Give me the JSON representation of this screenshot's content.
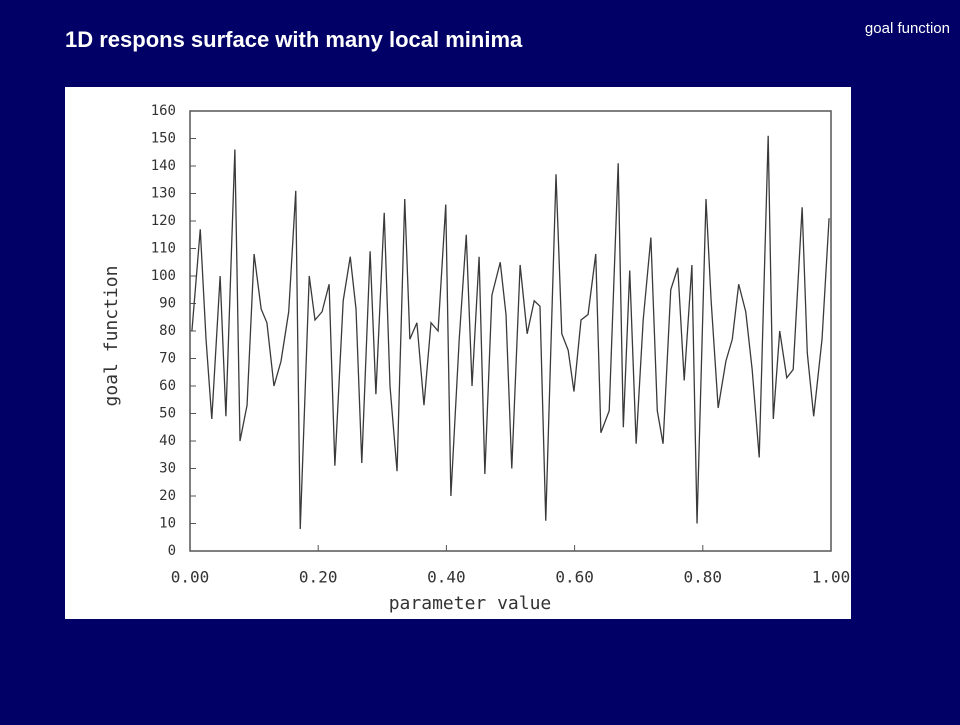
{
  "header_label": "goal function",
  "chart_data": {
    "type": "line",
    "title": "1D respons surface with many local minima",
    "x_label": "parameter value",
    "y_label": "goal function",
    "xlim": [
      0,
      1
    ],
    "ylim": [
      0,
      160
    ],
    "xticks": [
      {
        "value": 0,
        "label": "0.00"
      },
      {
        "value": 0.2,
        "label": "0.20"
      },
      {
        "value": 0.4,
        "label": "0.40"
      },
      {
        "value": 0.6,
        "label": "0.60"
      },
      {
        "value": 0.8,
        "label": "0.80"
      },
      {
        "value": 1,
        "label": "1.00"
      }
    ],
    "yticks": [
      0,
      10,
      20,
      30,
      40,
      50,
      60,
      70,
      80,
      90,
      100,
      110,
      120,
      130,
      140,
      150,
      160
    ],
    "color": "#3a3a3a",
    "x": [
      0.003,
      0.016,
      0.025,
      0.034,
      0.047,
      0.056,
      0.07,
      0.078,
      0.089,
      0.1,
      0.111,
      0.12,
      0.131,
      0.142,
      0.154,
      0.165,
      0.172,
      0.186,
      0.195,
      0.206,
      0.217,
      0.226,
      0.239,
      0.25,
      0.259,
      0.268,
      0.281,
      0.29,
      0.303,
      0.312,
      0.323,
      0.335,
      0.343,
      0.354,
      0.365,
      0.376,
      0.387,
      0.399,
      0.407,
      0.42,
      0.431,
      0.44,
      0.451,
      0.46,
      0.471,
      0.484,
      0.493,
      0.502,
      0.515,
      0.526,
      0.537,
      0.546,
      0.555,
      0.571,
      0.58,
      0.59,
      0.599,
      0.61,
      0.621,
      0.633,
      0.641,
      0.654,
      0.668,
      0.676,
      0.686,
      0.696,
      0.707,
      0.719,
      0.729,
      0.738,
      0.75,
      0.761,
      0.771,
      0.783,
      0.791,
      0.805,
      0.813,
      0.824,
      0.836,
      0.846,
      0.856,
      0.867,
      0.877,
      0.888,
      0.902,
      0.91,
      0.92,
      0.931,
      0.941,
      0.955,
      0.963,
      0.973,
      0.986,
      0.997
    ],
    "values": [
      80,
      117,
      77,
      48,
      100,
      49,
      146,
      40,
      53,
      108,
      88,
      83,
      60,
      69,
      87,
      131,
      8,
      100,
      84,
      87,
      97,
      31,
      91,
      107,
      88,
      32,
      109,
      57,
      123,
      60,
      29,
      128,
      77,
      83,
      53,
      83,
      80,
      126,
      20,
      77,
      115,
      60,
      107,
      28,
      93,
      105,
      86,
      30,
      104,
      79,
      91,
      89,
      11,
      137,
      79,
      73,
      58,
      84,
      86,
      108,
      43,
      51,
      141,
      45,
      102,
      39,
      84,
      114,
      51,
      39,
      95,
      103,
      62,
      104,
      10,
      128,
      91,
      52,
      69,
      77,
      97,
      87,
      66,
      34,
      151,
      48,
      80,
      63,
      66,
      125,
      72,
      49,
      77,
      121
    ]
  }
}
